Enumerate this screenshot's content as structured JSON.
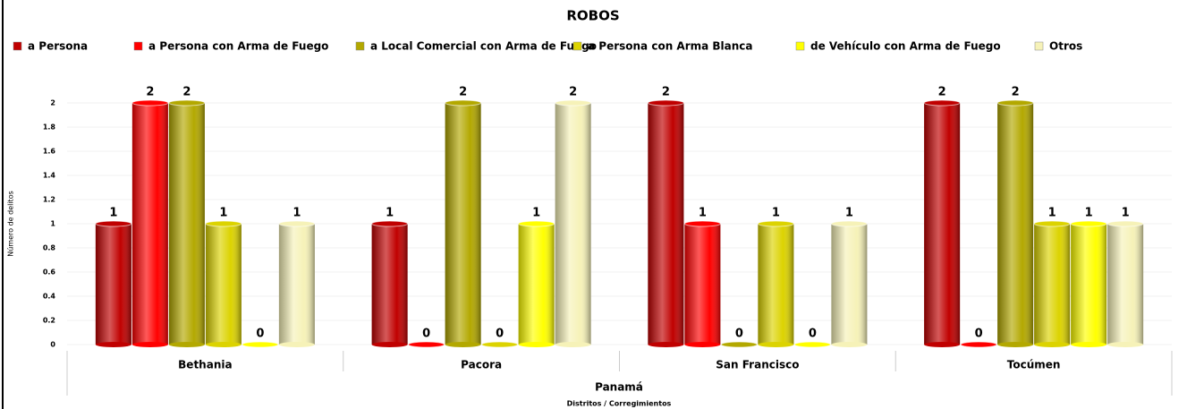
{
  "chart_data": {
    "type": "bar",
    "title": "ROBOS",
    "x_label": "Distritos / Corregimientos",
    "y_label": "Número de delitos",
    "group_label": "Panamá",
    "categories": [
      "Bethania",
      "Pacora",
      "San Francisco",
      "Tocúmen"
    ],
    "series": [
      {
        "name": "a Persona",
        "color": "#c00000",
        "values": [
          1,
          1,
          2,
          2
        ]
      },
      {
        "name": "a Persona con Arma de Fuego",
        "color": "#ff0000",
        "values": [
          2,
          0,
          1,
          0
        ]
      },
      {
        "name": "a  Local Comercial con Arma de Fuego",
        "color": "#b3a800",
        "values": [
          2,
          2,
          0,
          2
        ]
      },
      {
        "name": "a Persona con Arma Blanca",
        "color": "#dcd300",
        "values": [
          1,
          0,
          1,
          1
        ]
      },
      {
        "name": "de Vehículo con Arma de Fuego",
        "color": "#ffff00",
        "values": [
          0,
          1,
          0,
          1
        ]
      },
      {
        "name": "Otros",
        "color": "#f6f2b8",
        "values": [
          1,
          2,
          1,
          1
        ]
      }
    ],
    "ylim": [
      0,
      2.2
    ],
    "yticks": [
      0,
      0.2,
      0.4,
      0.6,
      0.8,
      1,
      1.2,
      1.4,
      1.6,
      1.8,
      2
    ],
    "grid": true
  }
}
